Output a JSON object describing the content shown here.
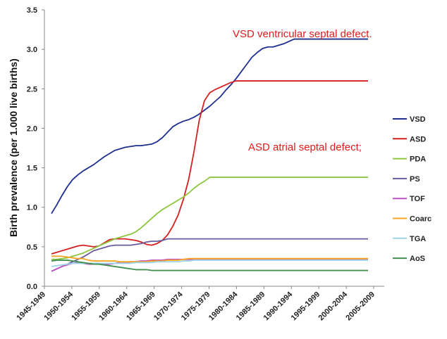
{
  "chart_data": {
    "type": "line",
    "title": "",
    "xlabel": "",
    "ylabel": "Birth prevalence (per 1.000 live births)",
    "ylim": [
      0,
      3.5
    ],
    "yticks": [
      "0.0",
      "0.5",
      "1.0",
      "1.5",
      "2.0",
      "2.5",
      "3.0",
      "3.5"
    ],
    "categories": [
      "1945-1949",
      "1950-1954",
      "1955-1959",
      "1960-1964",
      "1965-1969",
      "1970-1974",
      "1975-1979",
      "1980-1984",
      "1985-1989",
      "1990-1994",
      "1995-1999",
      "2000-2004",
      "2005-2009"
    ],
    "x": [
      1947,
      1948,
      1949,
      1950,
      1951,
      1952,
      1953,
      1954,
      1955,
      1956,
      1957,
      1958,
      1959,
      1960,
      1961,
      1962,
      1963,
      1964,
      1965,
      1966,
      1967,
      1968,
      1969,
      1970,
      1971,
      1972,
      1973,
      1974,
      1975,
      1976,
      1977,
      1978,
      1979,
      1980,
      1981,
      1982,
      1983,
      1984,
      1985,
      1986,
      1987,
      1988,
      1989,
      1990,
      1991,
      1992,
      1993,
      1994,
      1995,
      1996,
      1997,
      1998,
      1999,
      2000,
      2001,
      2002,
      2003,
      2004,
      2005,
      2006,
      2007
    ],
    "legend_position": "right",
    "series": [
      {
        "name": "VSD",
        "color": "#1f2f8f",
        "values": [
          0.92,
          1.03,
          1.15,
          1.26,
          1.35,
          1.41,
          1.46,
          1.5,
          1.54,
          1.59,
          1.64,
          1.68,
          1.72,
          1.74,
          1.76,
          1.77,
          1.78,
          1.78,
          1.79,
          1.8,
          1.83,
          1.88,
          1.95,
          2.02,
          2.06,
          2.09,
          2.11,
          2.14,
          2.18,
          2.23,
          2.28,
          2.34,
          2.4,
          2.48,
          2.55,
          2.63,
          2.72,
          2.81,
          2.9,
          2.96,
          3.01,
          3.03,
          3.03,
          3.05,
          3.07,
          3.1,
          3.13,
          3.13,
          3.13,
          3.13,
          3.13,
          3.13,
          3.13,
          3.13,
          3.13,
          3.13,
          3.13,
          3.13,
          3.13,
          3.13,
          3.13
        ]
      },
      {
        "name": "ASD",
        "color": "#d42020",
        "values": [
          0.41,
          0.43,
          0.45,
          0.47,
          0.49,
          0.51,
          0.52,
          0.51,
          0.5,
          0.51,
          0.55,
          0.59,
          0.6,
          0.6,
          0.6,
          0.59,
          0.58,
          0.56,
          0.53,
          0.52,
          0.54,
          0.58,
          0.65,
          0.76,
          0.9,
          1.1,
          1.35,
          1.7,
          2.1,
          2.35,
          2.45,
          2.49,
          2.52,
          2.55,
          2.58,
          2.6,
          2.6,
          2.6,
          2.6,
          2.6,
          2.6,
          2.6,
          2.6,
          2.6,
          2.6,
          2.6,
          2.6,
          2.6,
          2.6,
          2.6,
          2.6,
          2.6,
          2.6,
          2.6,
          2.6,
          2.6,
          2.6,
          2.6,
          2.6,
          2.6,
          2.6
        ]
      },
      {
        "name": "PDA",
        "color": "#8dc63f",
        "values": [
          0.34,
          0.34,
          0.35,
          0.36,
          0.38,
          0.4,
          0.42,
          0.45,
          0.48,
          0.51,
          0.54,
          0.57,
          0.6,
          0.62,
          0.64,
          0.66,
          0.69,
          0.74,
          0.8,
          0.86,
          0.92,
          0.97,
          1.01,
          1.05,
          1.09,
          1.13,
          1.18,
          1.24,
          1.29,
          1.33,
          1.38,
          1.38,
          1.38,
          1.38,
          1.38,
          1.38,
          1.38,
          1.38,
          1.38,
          1.38,
          1.38,
          1.38,
          1.38,
          1.38,
          1.38,
          1.38,
          1.38,
          1.38,
          1.38,
          1.38,
          1.38,
          1.38,
          1.38,
          1.38,
          1.38,
          1.38,
          1.38,
          1.38,
          1.38,
          1.38,
          1.38
        ]
      },
      {
        "name": "PS",
        "color": "#6a5a9e",
        "values": [
          0.19,
          0.22,
          0.25,
          0.28,
          0.31,
          0.34,
          0.37,
          0.41,
          0.45,
          0.47,
          0.49,
          0.51,
          0.52,
          0.52,
          0.52,
          0.52,
          0.53,
          0.54,
          0.56,
          0.57,
          0.57,
          0.58,
          0.6,
          0.6,
          0.6,
          0.6,
          0.6,
          0.6,
          0.6,
          0.6,
          0.6,
          0.6,
          0.6,
          0.6,
          0.6,
          0.6,
          0.6,
          0.6,
          0.6,
          0.6,
          0.6,
          0.6,
          0.6,
          0.6,
          0.6,
          0.6,
          0.6,
          0.6,
          0.6,
          0.6,
          0.6,
          0.6,
          0.6,
          0.6,
          0.6,
          0.6,
          0.6,
          0.6,
          0.6,
          0.6,
          0.6
        ]
      },
      {
        "name": "TOF",
        "color": "#c04fc0",
        "values": [
          0.19,
          0.22,
          0.25,
          0.27,
          0.29,
          0.3,
          0.29,
          0.28,
          0.28,
          0.28,
          0.28,
          0.28,
          0.29,
          0.3,
          0.3,
          0.31,
          0.31,
          0.32,
          0.32,
          0.33,
          0.33,
          0.33,
          0.34,
          0.34,
          0.34,
          0.34,
          0.34,
          0.34,
          0.34,
          0.34,
          0.34,
          0.34,
          0.34,
          0.34,
          0.34,
          0.34,
          0.34,
          0.34,
          0.34,
          0.34,
          0.34,
          0.34,
          0.34,
          0.34,
          0.34,
          0.34,
          0.34,
          0.34,
          0.34,
          0.34,
          0.34,
          0.34,
          0.34,
          0.34,
          0.34,
          0.34,
          0.34,
          0.34,
          0.34,
          0.34,
          0.34
        ]
      },
      {
        "name": "Coarc",
        "color": "#f5a623",
        "values": [
          0.38,
          0.38,
          0.38,
          0.37,
          0.36,
          0.35,
          0.35,
          0.33,
          0.32,
          0.32,
          0.32,
          0.32,
          0.32,
          0.31,
          0.31,
          0.31,
          0.31,
          0.31,
          0.31,
          0.32,
          0.32,
          0.32,
          0.33,
          0.33,
          0.33,
          0.34,
          0.35,
          0.35,
          0.35,
          0.35,
          0.35,
          0.35,
          0.35,
          0.35,
          0.35,
          0.35,
          0.35,
          0.35,
          0.35,
          0.35,
          0.35,
          0.35,
          0.35,
          0.35,
          0.35,
          0.35,
          0.35,
          0.35,
          0.35,
          0.35,
          0.35,
          0.35,
          0.35,
          0.35,
          0.35,
          0.35,
          0.35,
          0.35,
          0.35,
          0.35,
          0.35
        ]
      },
      {
        "name": "TGA",
        "color": "#9fd3e6",
        "values": [
          0.25,
          0.26,
          0.27,
          0.28,
          0.29,
          0.29,
          0.29,
          0.29,
          0.29,
          0.29,
          0.29,
          0.29,
          0.29,
          0.29,
          0.29,
          0.29,
          0.3,
          0.3,
          0.3,
          0.3,
          0.31,
          0.31,
          0.31,
          0.31,
          0.31,
          0.32,
          0.32,
          0.33,
          0.33,
          0.33,
          0.33,
          0.33,
          0.33,
          0.33,
          0.33,
          0.33,
          0.33,
          0.33,
          0.33,
          0.33,
          0.33,
          0.33,
          0.33,
          0.33,
          0.33,
          0.33,
          0.33,
          0.33,
          0.33,
          0.33,
          0.33,
          0.33,
          0.33,
          0.33,
          0.33,
          0.33,
          0.33,
          0.33,
          0.33,
          0.33,
          0.33
        ]
      },
      {
        "name": "AoS",
        "color": "#3f8f4f",
        "values": [
          0.32,
          0.33,
          0.33,
          0.33,
          0.32,
          0.31,
          0.3,
          0.29,
          0.28,
          0.28,
          0.27,
          0.26,
          0.25,
          0.24,
          0.23,
          0.22,
          0.21,
          0.21,
          0.21,
          0.2,
          0.2,
          0.2,
          0.2,
          0.2,
          0.2,
          0.2,
          0.2,
          0.2,
          0.2,
          0.2,
          0.2,
          0.2,
          0.2,
          0.2,
          0.2,
          0.2,
          0.2,
          0.2,
          0.2,
          0.2,
          0.2,
          0.2,
          0.2,
          0.2,
          0.2,
          0.2,
          0.2,
          0.2,
          0.2,
          0.2,
          0.2,
          0.2,
          0.2,
          0.2,
          0.2,
          0.2,
          0.2,
          0.2,
          0.2,
          0.2,
          0.2
        ]
      }
    ],
    "annotations": [
      {
        "text": "VSD  ventricular septal defect.",
        "color": "#e01b1b"
      },
      {
        "text": "ASD  atrial septal defect;",
        "color": "#e01b1b"
      }
    ]
  }
}
